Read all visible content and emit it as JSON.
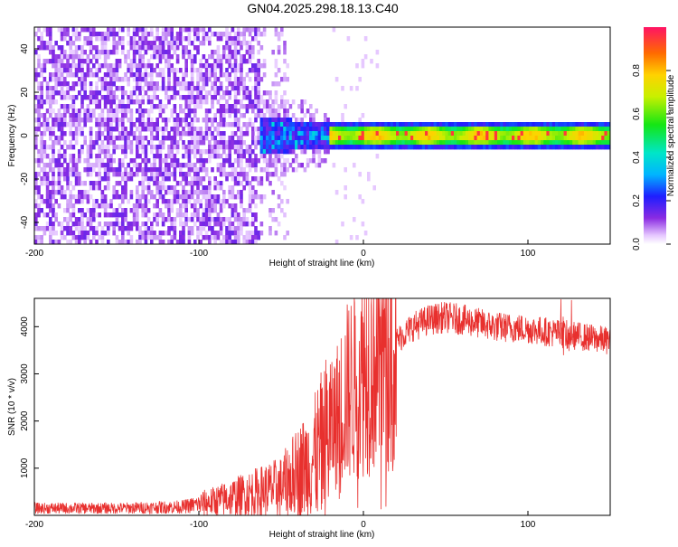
{
  "title": "GN04.2025.298.18.13.C40",
  "chart_data": [
    {
      "type": "heatmap",
      "xlabel": "Height of straight line (km)",
      "ylabel": "Frequency (Hz)",
      "xlim": [
        -200,
        150
      ],
      "ylim": [
        -50,
        50
      ],
      "xticks": [
        -200,
        -100,
        0,
        100
      ],
      "yticks": [
        -40,
        -20,
        0,
        20,
        40
      ],
      "colorbar": {
        "label": "Normalized spectral amplitude",
        "range": [
          0,
          1
        ],
        "ticks": [
          0.0,
          0.2,
          0.4,
          0.6,
          0.8
        ]
      },
      "signal_band": {
        "center_hz": 0,
        "halfwidth_hz": 4,
        "onset_km": -20
      },
      "noise_region_km": [
        -200,
        -60
      ],
      "transition_km": [
        -60,
        -20
      ]
    },
    {
      "type": "line",
      "xlabel": "Height of straight line (km)",
      "ylabel": "SNR (10 * v/v)",
      "xlim": [
        -200,
        150
      ],
      "ylim": [
        0,
        4600
      ],
      "xticks": [
        -200,
        -100,
        0,
        100
      ],
      "yticks": [
        1000,
        2000,
        3000,
        4000
      ],
      "series": [
        {
          "color": "#e8302e",
          "trend_x": [
            -200,
            -150,
            -110,
            -90,
            -70,
            -50,
            -40,
            -30,
            -20,
            -10,
            0,
            10,
            20,
            30,
            40,
            50,
            60,
            80,
            100,
            120,
            140,
            150
          ],
          "trend_y": [
            150,
            150,
            180,
            300,
            450,
            600,
            900,
            1200,
            1800,
            2600,
            3100,
            3400,
            3700,
            4000,
            4150,
            4200,
            4150,
            4000,
            3950,
            3850,
            3750,
            3700
          ]
        }
      ]
    }
  ]
}
